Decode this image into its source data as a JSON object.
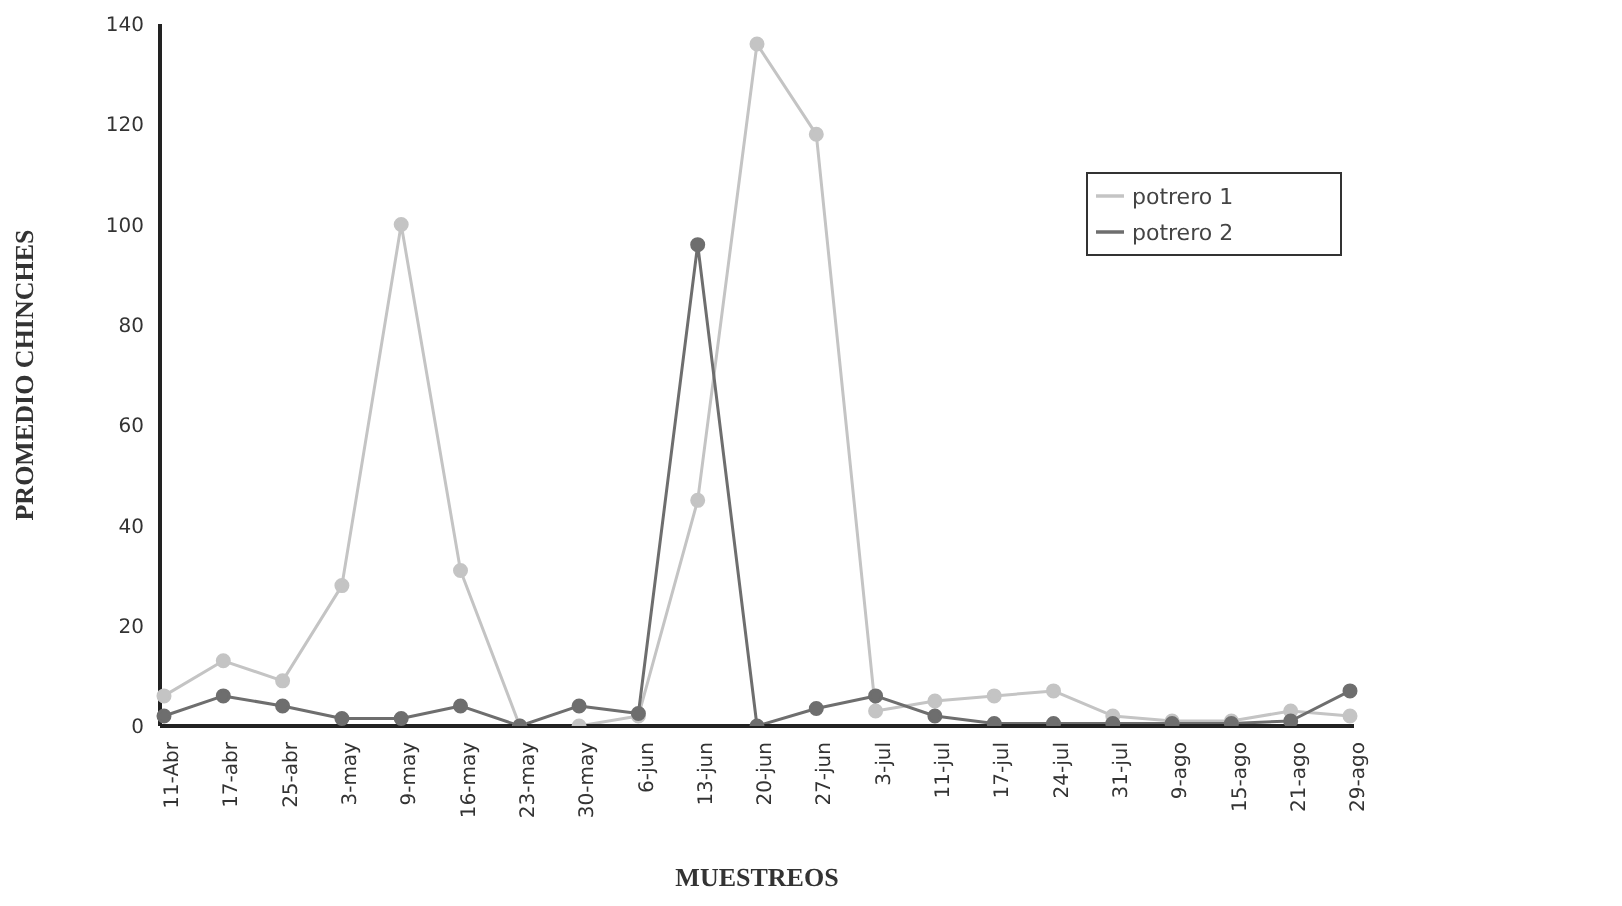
{
  "chart_data": {
    "type": "line",
    "xlabel": "MUESTREOS",
    "ylabel": "PROMEDIO CHINCHES",
    "categories": [
      "11-Abr",
      "17-abr",
      "25-abr",
      "3-may",
      "9-may",
      "16-may",
      "23-may",
      "30-may",
      "6-jun",
      "13-jun",
      "20-jun",
      "27-jun",
      "3-jul",
      "11-jul",
      "17-jul",
      "24-jul",
      "31-jul",
      "9-ago",
      "15-ago",
      "21-ago",
      "29-ago"
    ],
    "series": [
      {
        "name": "potrero 1",
        "color": "#c4c4c4",
        "values": [
          6,
          13,
          9,
          28,
          100,
          31,
          0,
          0,
          2,
          45,
          136,
          118,
          3,
          5,
          6,
          7,
          2,
          1,
          1,
          3,
          2
        ]
      },
      {
        "name": "potrero 2",
        "color": "#6e6e6e",
        "values": [
          2,
          6,
          4,
          1.5,
          1.5,
          4,
          0,
          4,
          2.5,
          96,
          0,
          3.5,
          6,
          2,
          0.5,
          0.5,
          0.5,
          0.5,
          0.5,
          1,
          7
        ]
      }
    ],
    "ylim": [
      0,
      140
    ],
    "yticks": [
      0,
      20,
      40,
      60,
      80,
      100,
      120,
      140
    ],
    "grid": false,
    "legend": "top right",
    "marker": "circle",
    "line_style": "solid"
  }
}
